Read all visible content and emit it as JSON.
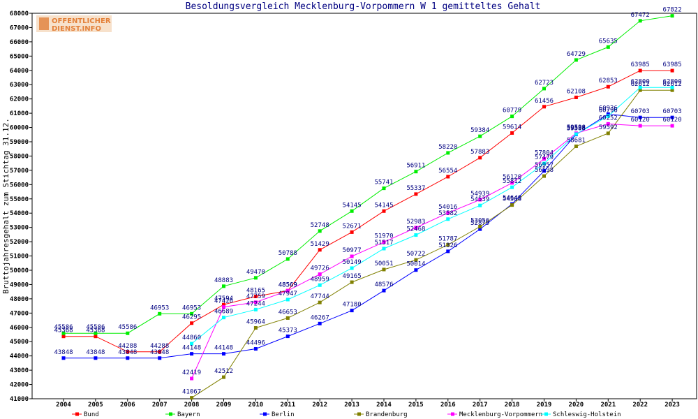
{
  "chart_data": {
    "type": "line",
    "title": "Besoldungsvergleich Mecklenburg-Vorpommern W 1 gemitteltes Gehalt",
    "ylabel": "Bruttojahresgehalt zum Stichtag 31.12.",
    "xlabel": "",
    "ylim": [
      41000,
      68000
    ],
    "ystep": 1000,
    "grid": false,
    "legend_placement": "bottom",
    "categories": [
      "2004",
      "2005",
      "2006",
      "2007",
      "2008",
      "2009",
      "2010",
      "2011",
      "2012",
      "2013",
      "2014",
      "2015",
      "2016",
      "2017",
      "2018",
      "2019",
      "2020",
      "2021",
      "2022",
      "2023"
    ],
    "series": [
      {
        "name": "Bund",
        "color": "#ff0000",
        "values": [
          45368,
          45368,
          44288,
          44288,
          46295,
          47594,
          48165,
          48569,
          51429,
          52671,
          54145,
          55337,
          56554,
          57883,
          59614,
          61456,
          62108,
          62853,
          63985,
          63985
        ]
      },
      {
        "name": "Bayern",
        "color": "#00ee00",
        "values": [
          45586,
          45586,
          45586,
          46953,
          46953,
          48883,
          49470,
          50788,
          52748,
          54145,
          55741,
          56911,
          58220,
          59384,
          60779,
          62723,
          64729,
          65635,
          67472,
          67822
        ]
      },
      {
        "name": "Berlin",
        "color": "#0000ff",
        "values": [
          43848,
          43848,
          43848,
          43848,
          44148,
          44148,
          44496,
          45373,
          46267,
          47180,
          48576,
          50014,
          51326,
          52879,
          54640,
          56957,
          59508,
          60936,
          60703,
          60703
        ]
      },
      {
        "name": "Brandenburg",
        "color": "#808000",
        "values": [
          null,
          null,
          null,
          null,
          41067,
          42512,
          45964,
          46653,
          47744,
          49165,
          50051,
          50722,
          51787,
          53056,
          54568,
          56598,
          58681,
          59592,
          62612,
          62612
        ]
      },
      {
        "name": "Mecklenburg-Vorpommern",
        "color": "#ff00ff",
        "values": [
          null,
          null,
          null,
          null,
          42419,
          47426,
          47759,
          48569,
          49726,
          50977,
          51970,
          52983,
          54016,
          54939,
          56120,
          57804,
          59598,
          60252,
          60120,
          60120
        ]
      },
      {
        "name": "Schleswig-Holstein",
        "color": "#00ffff",
        "values": [
          null,
          null,
          null,
          null,
          44860,
          46689,
          47244,
          47947,
          48959,
          50149,
          51517,
          52468,
          53582,
          54539,
          55812,
          57479,
          59538,
          60796,
          62800,
          62800
        ]
      }
    ]
  },
  "logo": {
    "line1": "OFFENTLICHER",
    "line2": "DIENST.INFO"
  }
}
